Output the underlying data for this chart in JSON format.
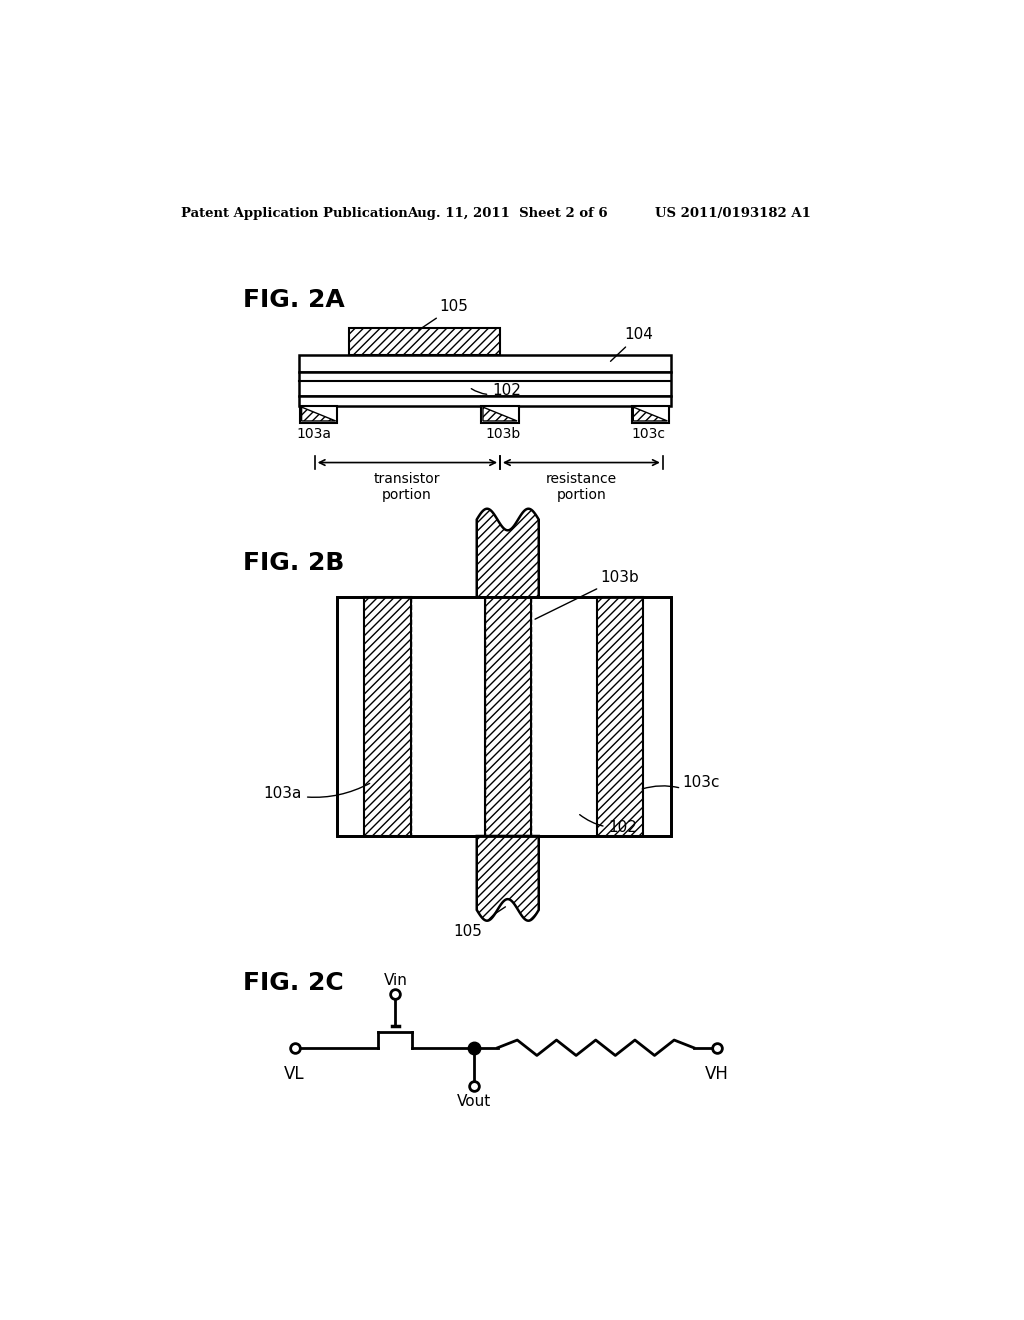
{
  "bg_color": "#ffffff",
  "header_left": "Patent Application Publication",
  "header_mid": "Aug. 11, 2011  Sheet 2 of 6",
  "header_right": "US 2011/0193182 A1",
  "fig2a_label": "FIG. 2A",
  "fig2b_label": "FIG. 2B",
  "fig2c_label": "FIG. 2C"
}
